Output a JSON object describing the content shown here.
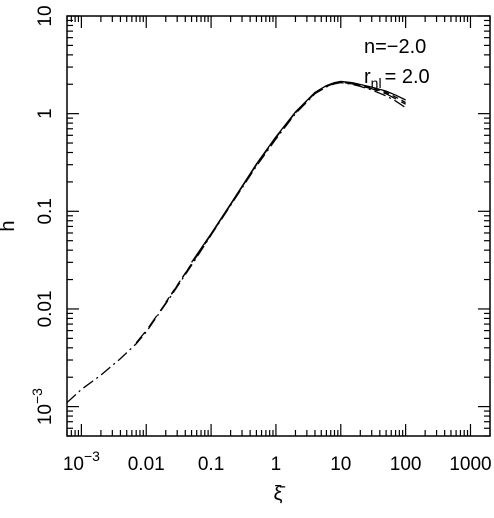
{
  "chart_data": {
    "type": "line",
    "title": "",
    "xlabel": "ξ̄",
    "ylabel": "h",
    "xscale": "log",
    "yscale": "log",
    "xlim": [
      0.0006,
      2000
    ],
    "ylim": [
      0.0005,
      10
    ],
    "grid": false,
    "legend": "none",
    "x_ticks": [
      {
        "value": 0.001,
        "base": "10",
        "exp": "−3"
      },
      {
        "value": 0.01,
        "label": "0.01"
      },
      {
        "value": 0.1,
        "label": "0.1"
      },
      {
        "value": 1,
        "label": "1"
      },
      {
        "value": 10,
        "label": "10"
      },
      {
        "value": 100,
        "label": "100"
      },
      {
        "value": 1000,
        "label": "1000"
      }
    ],
    "y_ticks": [
      {
        "value": 0.001,
        "base": "10",
        "exp": "−3"
      },
      {
        "value": 0.01,
        "label": "0.01"
      },
      {
        "value": 0.1,
        "label": "0.1"
      },
      {
        "value": 1,
        "label": "1"
      },
      {
        "value": 10,
        "label": "10"
      }
    ],
    "annotations": [
      {
        "id": "n",
        "text": "n=−2.0"
      },
      {
        "id": "rnl",
        "base": "r",
        "sub": "nl",
        "text": "= 2.0"
      }
    ],
    "series": [
      {
        "dash": "dashdot",
        "x": [
          0.0006,
          0.001,
          0.002,
          0.004,
          0.007,
          0.01,
          0.02,
          0.05,
          0.1,
          0.2,
          0.5,
          1,
          2,
          4,
          6,
          8,
          10,
          15,
          20,
          30,
          50,
          70,
          100
        ],
        "y": [
          0.0011,
          0.0015,
          0.0021,
          0.0031,
          0.0044,
          0.0058,
          0.0113,
          0.028,
          0.057,
          0.115,
          0.29,
          0.55,
          1.0,
          1.6,
          1.88,
          2.02,
          2.08,
          2.0,
          1.9,
          1.75,
          1.52,
          1.35,
          1.15
        ]
      },
      {
        "dash": "longdash",
        "x": [
          0.007,
          0.01,
          0.02,
          0.05,
          0.1,
          0.2,
          0.5,
          1,
          2,
          4,
          6,
          8,
          10,
          15,
          20,
          30,
          50,
          70,
          100
        ],
        "y": [
          0.0045,
          0.006,
          0.0115,
          0.029,
          0.058,
          0.117,
          0.3,
          0.57,
          1.02,
          1.62,
          1.9,
          2.04,
          2.1,
          2.02,
          1.93,
          1.8,
          1.6,
          1.42,
          1.25
        ]
      },
      {
        "dash": "dashed",
        "x": [
          0.02,
          0.05,
          0.1,
          0.2,
          0.5,
          1,
          2,
          4,
          6,
          8,
          10,
          15,
          20,
          30,
          50,
          70,
          100
        ],
        "y": [
          0.0117,
          0.029,
          0.058,
          0.118,
          0.3,
          0.57,
          1.03,
          1.64,
          1.92,
          2.06,
          2.12,
          2.05,
          1.96,
          1.83,
          1.65,
          1.48,
          1.3
        ]
      },
      {
        "dash": "solid",
        "x": [
          0.05,
          0.1,
          0.2,
          0.5,
          1,
          2,
          4,
          6,
          8,
          10,
          15,
          20,
          30,
          50,
          70,
          100
        ],
        "y": [
          0.03,
          0.059,
          0.119,
          0.305,
          0.58,
          1.04,
          1.65,
          1.94,
          2.08,
          2.14,
          2.08,
          1.99,
          1.87,
          1.7,
          1.55,
          1.38
        ]
      }
    ]
  }
}
